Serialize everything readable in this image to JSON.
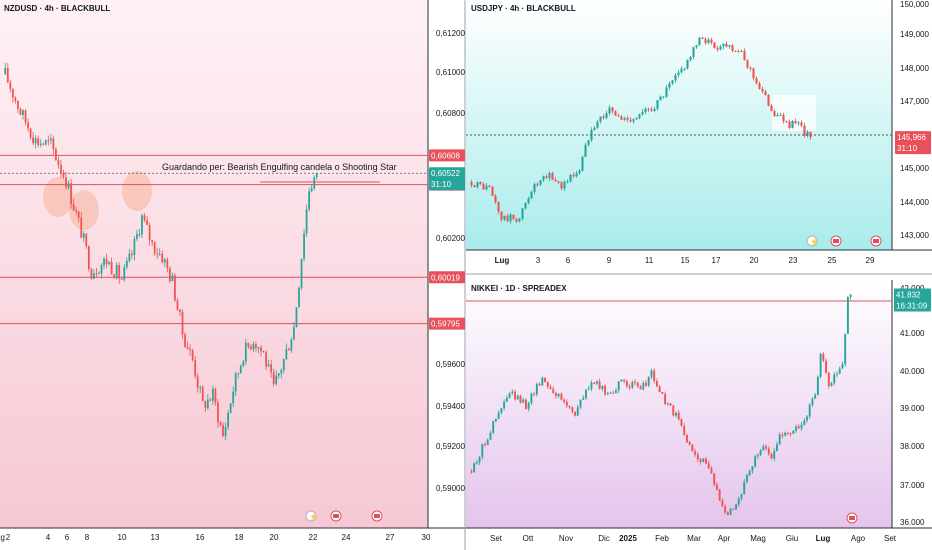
{
  "colors": {
    "up": "#26a69a",
    "down": "#ef5350",
    "level": "#e0505a",
    "priceBadge": "#26a69a",
    "levelBadge": "#e8505b"
  },
  "charts": [
    {
      "id": "nzdusd",
      "title": "NZDUSD · 4h · BLACKBULL",
      "annotation": "Guardando per: Bearish Engulfing candela o Shooting Star",
      "x_ticks": [
        "2",
        "4",
        "6",
        "8",
        "10",
        "13",
        "16",
        "18",
        "20",
        "22",
        "24",
        "27",
        "30",
        "Ag"
      ],
      "y_ticks": [
        "0,61200",
        "0,61000",
        "0,60800",
        "0,60200",
        "0,59600",
        "0,59400",
        "0,59200",
        "0,59000"
      ],
      "price": {
        "value": "0,60522",
        "timer": "31:10"
      },
      "levels": [
        "0,60608",
        "0,60467",
        "0,60019",
        "0,59795"
      ]
    },
    {
      "id": "usdjpy",
      "title": "USDJPY · 4h · BLACKBULL",
      "x_ticks": [
        "Lug",
        "3",
        "6",
        "9",
        "11",
        "15",
        "17",
        "20",
        "23",
        "25",
        "29"
      ],
      "y_ticks": [
        "150,000",
        "149,000",
        "148,000",
        "147,000",
        "145,000",
        "144,000",
        "143,000"
      ],
      "price": {
        "value": "145,966",
        "timer": "31:10"
      }
    },
    {
      "id": "nikkei",
      "title": "NIKKEI · 1D · SPREADEX",
      "x_ticks": [
        "Set",
        "Ott",
        "Nov",
        "Dic",
        "2025",
        "Feb",
        "Mar",
        "Apr",
        "Mag",
        "Giu",
        "Lug",
        "Ago",
        "Set"
      ],
      "y_ticks": [
        "42.000",
        "41.000",
        "40.000",
        "39.000",
        "38.000",
        "37.000",
        "36.000"
      ],
      "price": {
        "value": "41.832",
        "timer": "16:31:09"
      }
    }
  ],
  "chart_data": [
    {
      "type": "candlestick",
      "title": "NZDUSD · 4h · BLACKBULL",
      "ylim": [
        0.5898,
        0.6125
      ],
      "close_path": [
        [
          0,
          0.61
        ],
        [
          6,
          0.6082
        ],
        [
          12,
          0.6068
        ],
        [
          18,
          0.6066
        ],
        [
          24,
          0.6049
        ],
        [
          30,
          0.6024
        ],
        [
          34,
          0.6005
        ],
        [
          40,
          0.601
        ],
        [
          46,
          0.6001
        ],
        [
          50,
          0.6013
        ],
        [
          54,
          0.6031
        ],
        [
          58,
          0.6018
        ],
        [
          62,
          0.6012
        ],
        [
          66,
          0.6
        ],
        [
          70,
          0.5975
        ],
        [
          74,
          0.5962
        ],
        [
          78,
          0.594
        ],
        [
          82,
          0.5945
        ],
        [
          86,
          0.5925
        ],
        [
          90,
          0.5948
        ],
        [
          94,
          0.5965
        ],
        [
          98,
          0.5972
        ],
        [
          102,
          0.5965
        ],
        [
          106,
          0.5948
        ],
        [
          110,
          0.5962
        ],
        [
          114,
          0.5978
        ],
        [
          116,
          0.6
        ],
        [
          118,
          0.6025
        ],
        [
          120,
          0.6045
        ],
        [
          123,
          0.6052
        ]
      ],
      "current_price": 0.60522,
      "levels": [
        0.60608,
        0.60467,
        0.60019,
        0.59795
      ]
    },
    {
      "type": "candlestick",
      "title": "USDJPY · 4h · BLACKBULL",
      "ylim": [
        142.6,
        150.2
      ],
      "close_path": [
        [
          0,
          144.6
        ],
        [
          6,
          144.4
        ],
        [
          10,
          143.5
        ],
        [
          16,
          143.5
        ],
        [
          20,
          144.4
        ],
        [
          26,
          144.8
        ],
        [
          30,
          144.5
        ],
        [
          36,
          145.0
        ],
        [
          40,
          146.3
        ],
        [
          46,
          146.8
        ],
        [
          50,
          146.5
        ],
        [
          56,
          146.6
        ],
        [
          62,
          147.0
        ],
        [
          66,
          147.5
        ],
        [
          70,
          148.0
        ],
        [
          74,
          148.6
        ],
        [
          77,
          149.0
        ],
        [
          81,
          148.7
        ],
        [
          85,
          148.8
        ],
        [
          89,
          148.6
        ],
        [
          93,
          148.0
        ],
        [
          97,
          147.3
        ],
        [
          101,
          146.7
        ],
        [
          105,
          146.4
        ],
        [
          109,
          146.3
        ],
        [
          113,
          145.97
        ]
      ],
      "current_price": 145.966
    },
    {
      "type": "candlestick",
      "title": "NIKKEI · 1D · SPREADEX",
      "ylim": [
        35.95,
        42.2
      ],
      "close_path": [
        [
          0,
          37.3
        ],
        [
          8,
          38.5
        ],
        [
          14,
          39.3
        ],
        [
          20,
          39.0
        ],
        [
          26,
          39.7
        ],
        [
          32,
          39.2
        ],
        [
          38,
          38.8
        ],
        [
          44,
          39.6
        ],
        [
          50,
          39.3
        ],
        [
          56,
          39.6
        ],
        [
          62,
          39.4
        ],
        [
          66,
          39.8
        ],
        [
          70,
          39.2
        ],
        [
          76,
          38.6
        ],
        [
          80,
          37.9
        ],
        [
          86,
          37.5
        ],
        [
          90,
          36.8
        ],
        [
          94,
          36.2
        ],
        [
          98,
          36.6
        ],
        [
          102,
          37.3
        ],
        [
          106,
          37.9
        ],
        [
          110,
          37.7
        ],
        [
          114,
          38.3
        ],
        [
          118,
          38.3
        ],
        [
          122,
          38.6
        ],
        [
          126,
          39.3
        ],
        [
          128,
          40.3
        ],
        [
          131,
          39.5
        ],
        [
          134,
          39.8
        ],
        [
          136,
          40.0
        ],
        [
          138,
          41.83
        ]
      ],
      "current_price": 41.832
    }
  ]
}
